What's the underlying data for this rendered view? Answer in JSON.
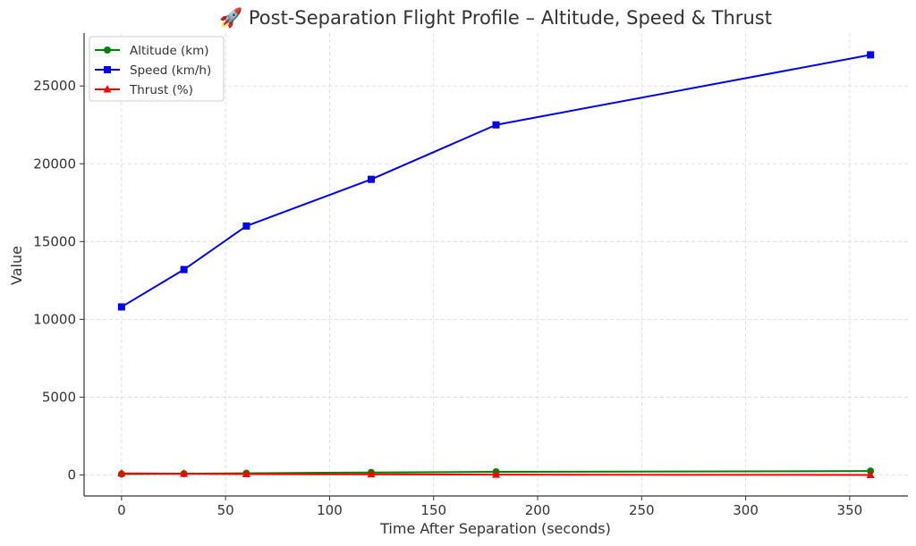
{
  "chart_data": {
    "type": "line",
    "title": "🚀 Post-Separation Flight Profile – Altitude, Speed & Thrust",
    "xlabel": "Time After Separation (seconds)",
    "ylabel": "Value",
    "x": [
      0,
      30,
      60,
      120,
      180,
      360
    ],
    "xlim": [
      -18,
      378
    ],
    "ylim": [
      -1350,
      28400
    ],
    "xticks": [
      0,
      50,
      100,
      150,
      200,
      250,
      300,
      350
    ],
    "yticks": [
      0,
      5000,
      10000,
      15000,
      20000,
      25000
    ],
    "grid": true,
    "legend_position": "top-left",
    "series": [
      {
        "name": "Altitude (km)",
        "values": [
          60,
          80,
          110,
          160,
          200,
          250
        ],
        "color": "#008000",
        "marker": "circle"
      },
      {
        "name": "Speed (km/h)",
        "values": [
          10800,
          13200,
          16000,
          19000,
          22500,
          27000
        ],
        "color": "#0000ee",
        "marker": "square"
      },
      {
        "name": "Thrust (%)",
        "values": [
          100,
          80,
          60,
          40,
          20,
          0
        ],
        "color": "#ff0000",
        "marker": "triangle"
      }
    ]
  }
}
